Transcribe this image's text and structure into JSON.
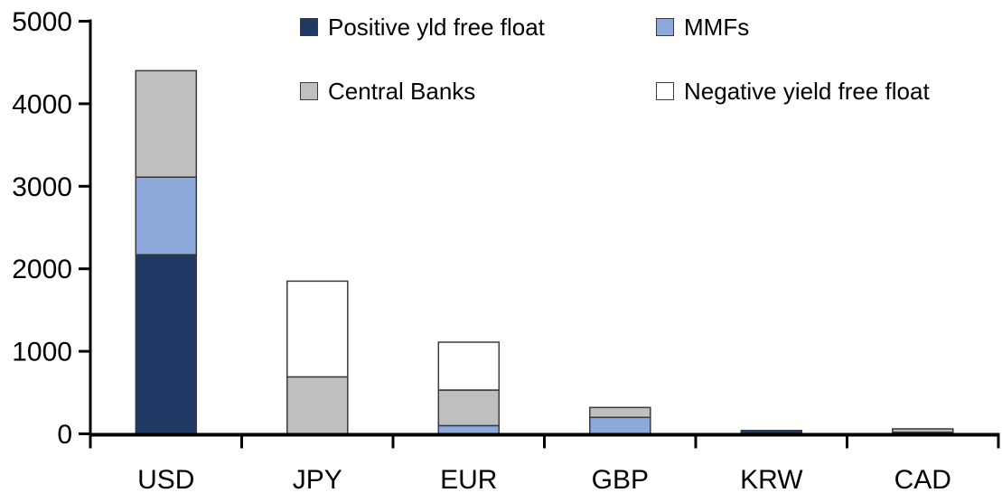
{
  "chart_data": {
    "type": "bar",
    "stacked": true,
    "categories": [
      "USD",
      "JPY",
      "EUR",
      "GBP",
      "KRW",
      "CAD"
    ],
    "series": [
      {
        "name": "Positive yld free float",
        "color": "#1F3864",
        "values": [
          2170,
          0,
          0,
          0,
          40,
          20
        ]
      },
      {
        "name": "MMFs",
        "color": "#8EA9DB",
        "values": [
          940,
          0,
          100,
          200,
          0,
          0
        ]
      },
      {
        "name": "Central Banks",
        "color": "#BFBFBF",
        "values": [
          1290,
          690,
          430,
          120,
          0,
          40
        ]
      },
      {
        "name": "Negative yield free float",
        "color": "#FFFFFF",
        "values": [
          0,
          1160,
          580,
          0,
          0,
          0
        ]
      }
    ],
    "totals": [
      4400,
      1850,
      1110,
      320,
      40,
      60
    ],
    "ylim": [
      0,
      5000
    ],
    "yticks": [
      0,
      1000,
      2000,
      3000,
      4000,
      5000
    ],
    "grid": false,
    "legend_position": "top",
    "legend_rows": [
      [
        "Positive yld free float",
        "MMFs"
      ],
      [
        "Central Banks",
        "Negative yield free float"
      ]
    ]
  },
  "colors": {
    "background": "#FFFFFF",
    "axis": "#000000",
    "segment_border": "#3A3A3A",
    "text": "#000000"
  }
}
